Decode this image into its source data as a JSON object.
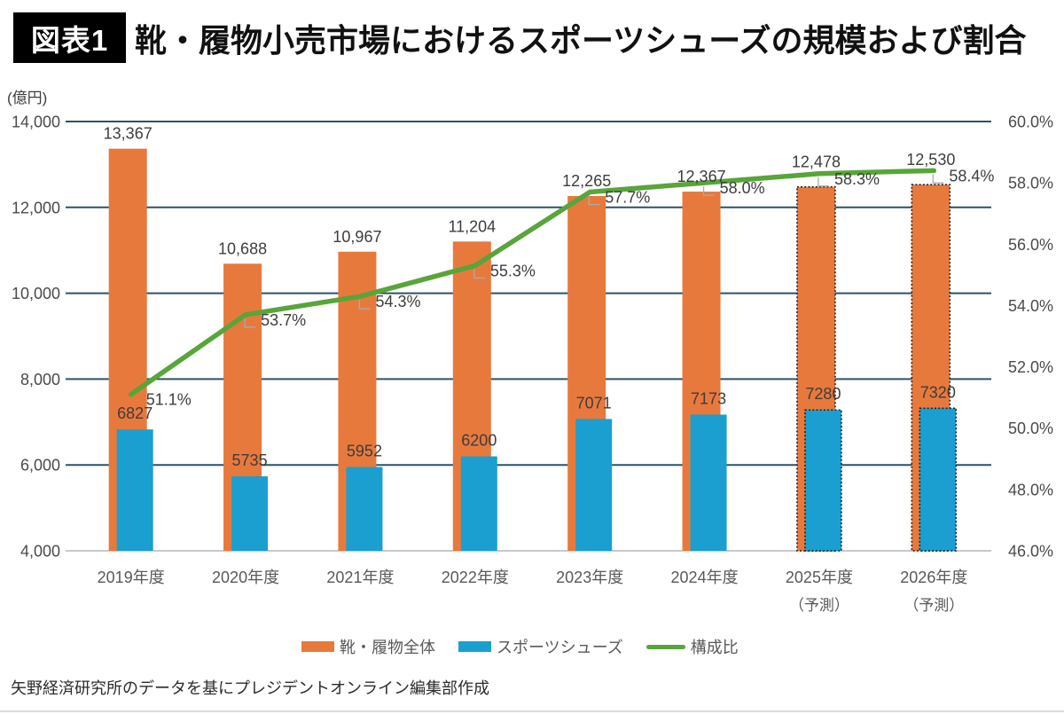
{
  "header": {
    "tag": "図表1",
    "title": "靴・履物小売市場におけるスポーツシューズの規模および割合"
  },
  "chart_data": {
    "type": "bar",
    "subtype": "overlapped-bars-with-line",
    "categories": [
      "2019年度",
      "2020年度",
      "2021年度",
      "2022年度",
      "2023年度",
      "2024年度",
      "2025年度",
      "2026年度"
    ],
    "category_sublabels": [
      "",
      "",
      "",
      "",
      "",
      "",
      "（予測）",
      "（予測）"
    ],
    "forecast_indices": [
      6,
      7
    ],
    "series": [
      {
        "name": "靴・履物全体",
        "type": "bar",
        "axis": "left",
        "color": "#E8793D",
        "values": [
          13367,
          10688,
          10967,
          11204,
          12265,
          12367,
          12478,
          12530
        ],
        "value_labels": [
          "13,367",
          "10,688",
          "10,967",
          "11,204",
          "12,265",
          "12,367",
          "12,478",
          "12,530"
        ]
      },
      {
        "name": "スポーツシューズ",
        "type": "bar",
        "axis": "left",
        "color": "#1A9FD0",
        "values": [
          6827,
          5735,
          5952,
          6200,
          7071,
          7173,
          7280,
          7320
        ],
        "value_labels": [
          "6827",
          "5735",
          "5952",
          "6200",
          "7071",
          "7173",
          "7280",
          "7320"
        ]
      },
      {
        "name": "構成比",
        "type": "line",
        "axis": "right",
        "color": "#58A53A",
        "values": [
          51.1,
          53.7,
          54.3,
          55.3,
          57.7,
          58.0,
          58.3,
          58.4
        ],
        "value_labels": [
          "51.1%",
          "53.7%",
          "54.3%",
          "55.3%",
          "57.7%",
          "58.0%",
          "58.3%",
          "58.4%"
        ]
      }
    ],
    "left_axis": {
      "unit": "(億円)",
      "min": 4000,
      "max": 14000,
      "step": 2000,
      "tick_labels": [
        "14,000",
        "12,000",
        "10,000",
        "8,000",
        "6,000",
        "4,000"
      ]
    },
    "right_axis": {
      "min": 46,
      "max": 60,
      "step": 2,
      "tick_labels": [
        "60.0%",
        "58.0%",
        "56.0%",
        "54.0%",
        "52.0%",
        "50.0%",
        "48.0%",
        "46.0%"
      ]
    },
    "grid": "horizontal",
    "gridline_color": "#2C5266",
    "baseline_color": "#C9C9C9",
    "legend_position": "bottom"
  },
  "legend": {
    "items": [
      {
        "label": "靴・履物全体",
        "color": "#E8793D",
        "shape": "rect"
      },
      {
        "label": "スポーツシューズ",
        "color": "#1A9FD0",
        "shape": "rect"
      },
      {
        "label": "構成比",
        "color": "#58A53A",
        "shape": "line"
      }
    ]
  },
  "footer": {
    "source": "矢野経済研究所のデータを基にプレジデントオンライン編集部作成"
  }
}
